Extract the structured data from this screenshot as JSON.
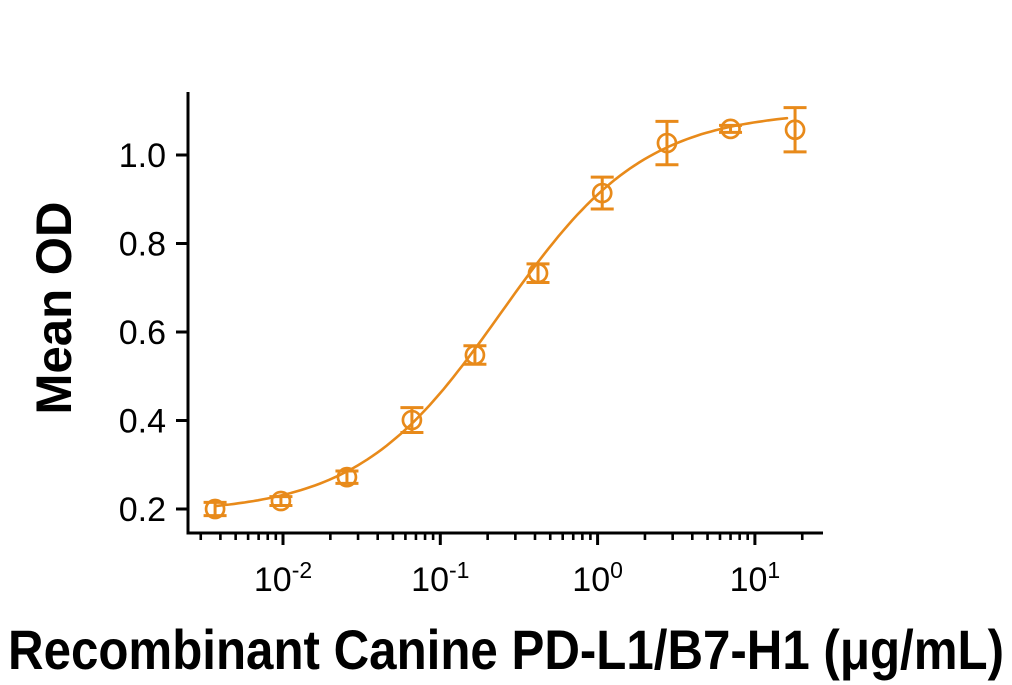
{
  "background_color": "#FFFFFF",
  "chart_data": {
    "type": "line",
    "title": "",
    "xlabel": "Recombinant Canine PD-L1/B7-H1 (μg/mL)",
    "ylabel": "Mean OD",
    "x_scale": "log10",
    "x_range": [
      0.0025,
      27
    ],
    "y_range": [
      0.146,
      1.143
    ],
    "grid": false,
    "legend": "none",
    "axis_color": "#000000",
    "series": [
      {
        "name": "Recombinant Canine PD-L1/B7-H1",
        "color": "#E88A1A",
        "marker": "open-circle",
        "points": [
          {
            "x": 0.0037,
            "y": 0.2,
            "err": 0.015
          },
          {
            "x": 0.0097,
            "y": 0.218,
            "err": 0.01
          },
          {
            "x": 0.0255,
            "y": 0.272,
            "err": 0.014
          },
          {
            "x": 0.066,
            "y": 0.401,
            "err": 0.028
          },
          {
            "x": 0.166,
            "y": 0.548,
            "err": 0.021
          },
          {
            "x": 0.418,
            "y": 0.733,
            "err": 0.021
          },
          {
            "x": 1.07,
            "y": 0.914,
            "err": 0.036
          },
          {
            "x": 2.76,
            "y": 1.027,
            "err": 0.049
          },
          {
            "x": 7.0,
            "y": 1.059,
            "err": 0.008
          },
          {
            "x": 18.0,
            "y": 1.057,
            "err": 0.05
          }
        ]
      }
    ],
    "fit_curve": {
      "model": "4PL",
      "bottom": 0.19,
      "top": 1.1,
      "ec50": 0.245,
      "hill": 0.95,
      "x_start": 0.0037,
      "x_end": 16.0
    },
    "y_ticks": [
      {
        "value": 1.0,
        "label": "1.0"
      },
      {
        "value": 0.8,
        "label": "0.8"
      },
      {
        "value": 0.6,
        "label": "0.6"
      },
      {
        "value": 0.4,
        "label": "0.4"
      },
      {
        "value": 0.2,
        "label": "0.2"
      }
    ],
    "x_ticks": [
      {
        "value": 0.01,
        "base": "10",
        "exponent": "-2"
      },
      {
        "value": 0.1,
        "base": "10",
        "exponent": "-1"
      },
      {
        "value": 1,
        "base": "10",
        "exponent": "0"
      },
      {
        "value": 10,
        "base": "10",
        "exponent": "1"
      }
    ]
  }
}
